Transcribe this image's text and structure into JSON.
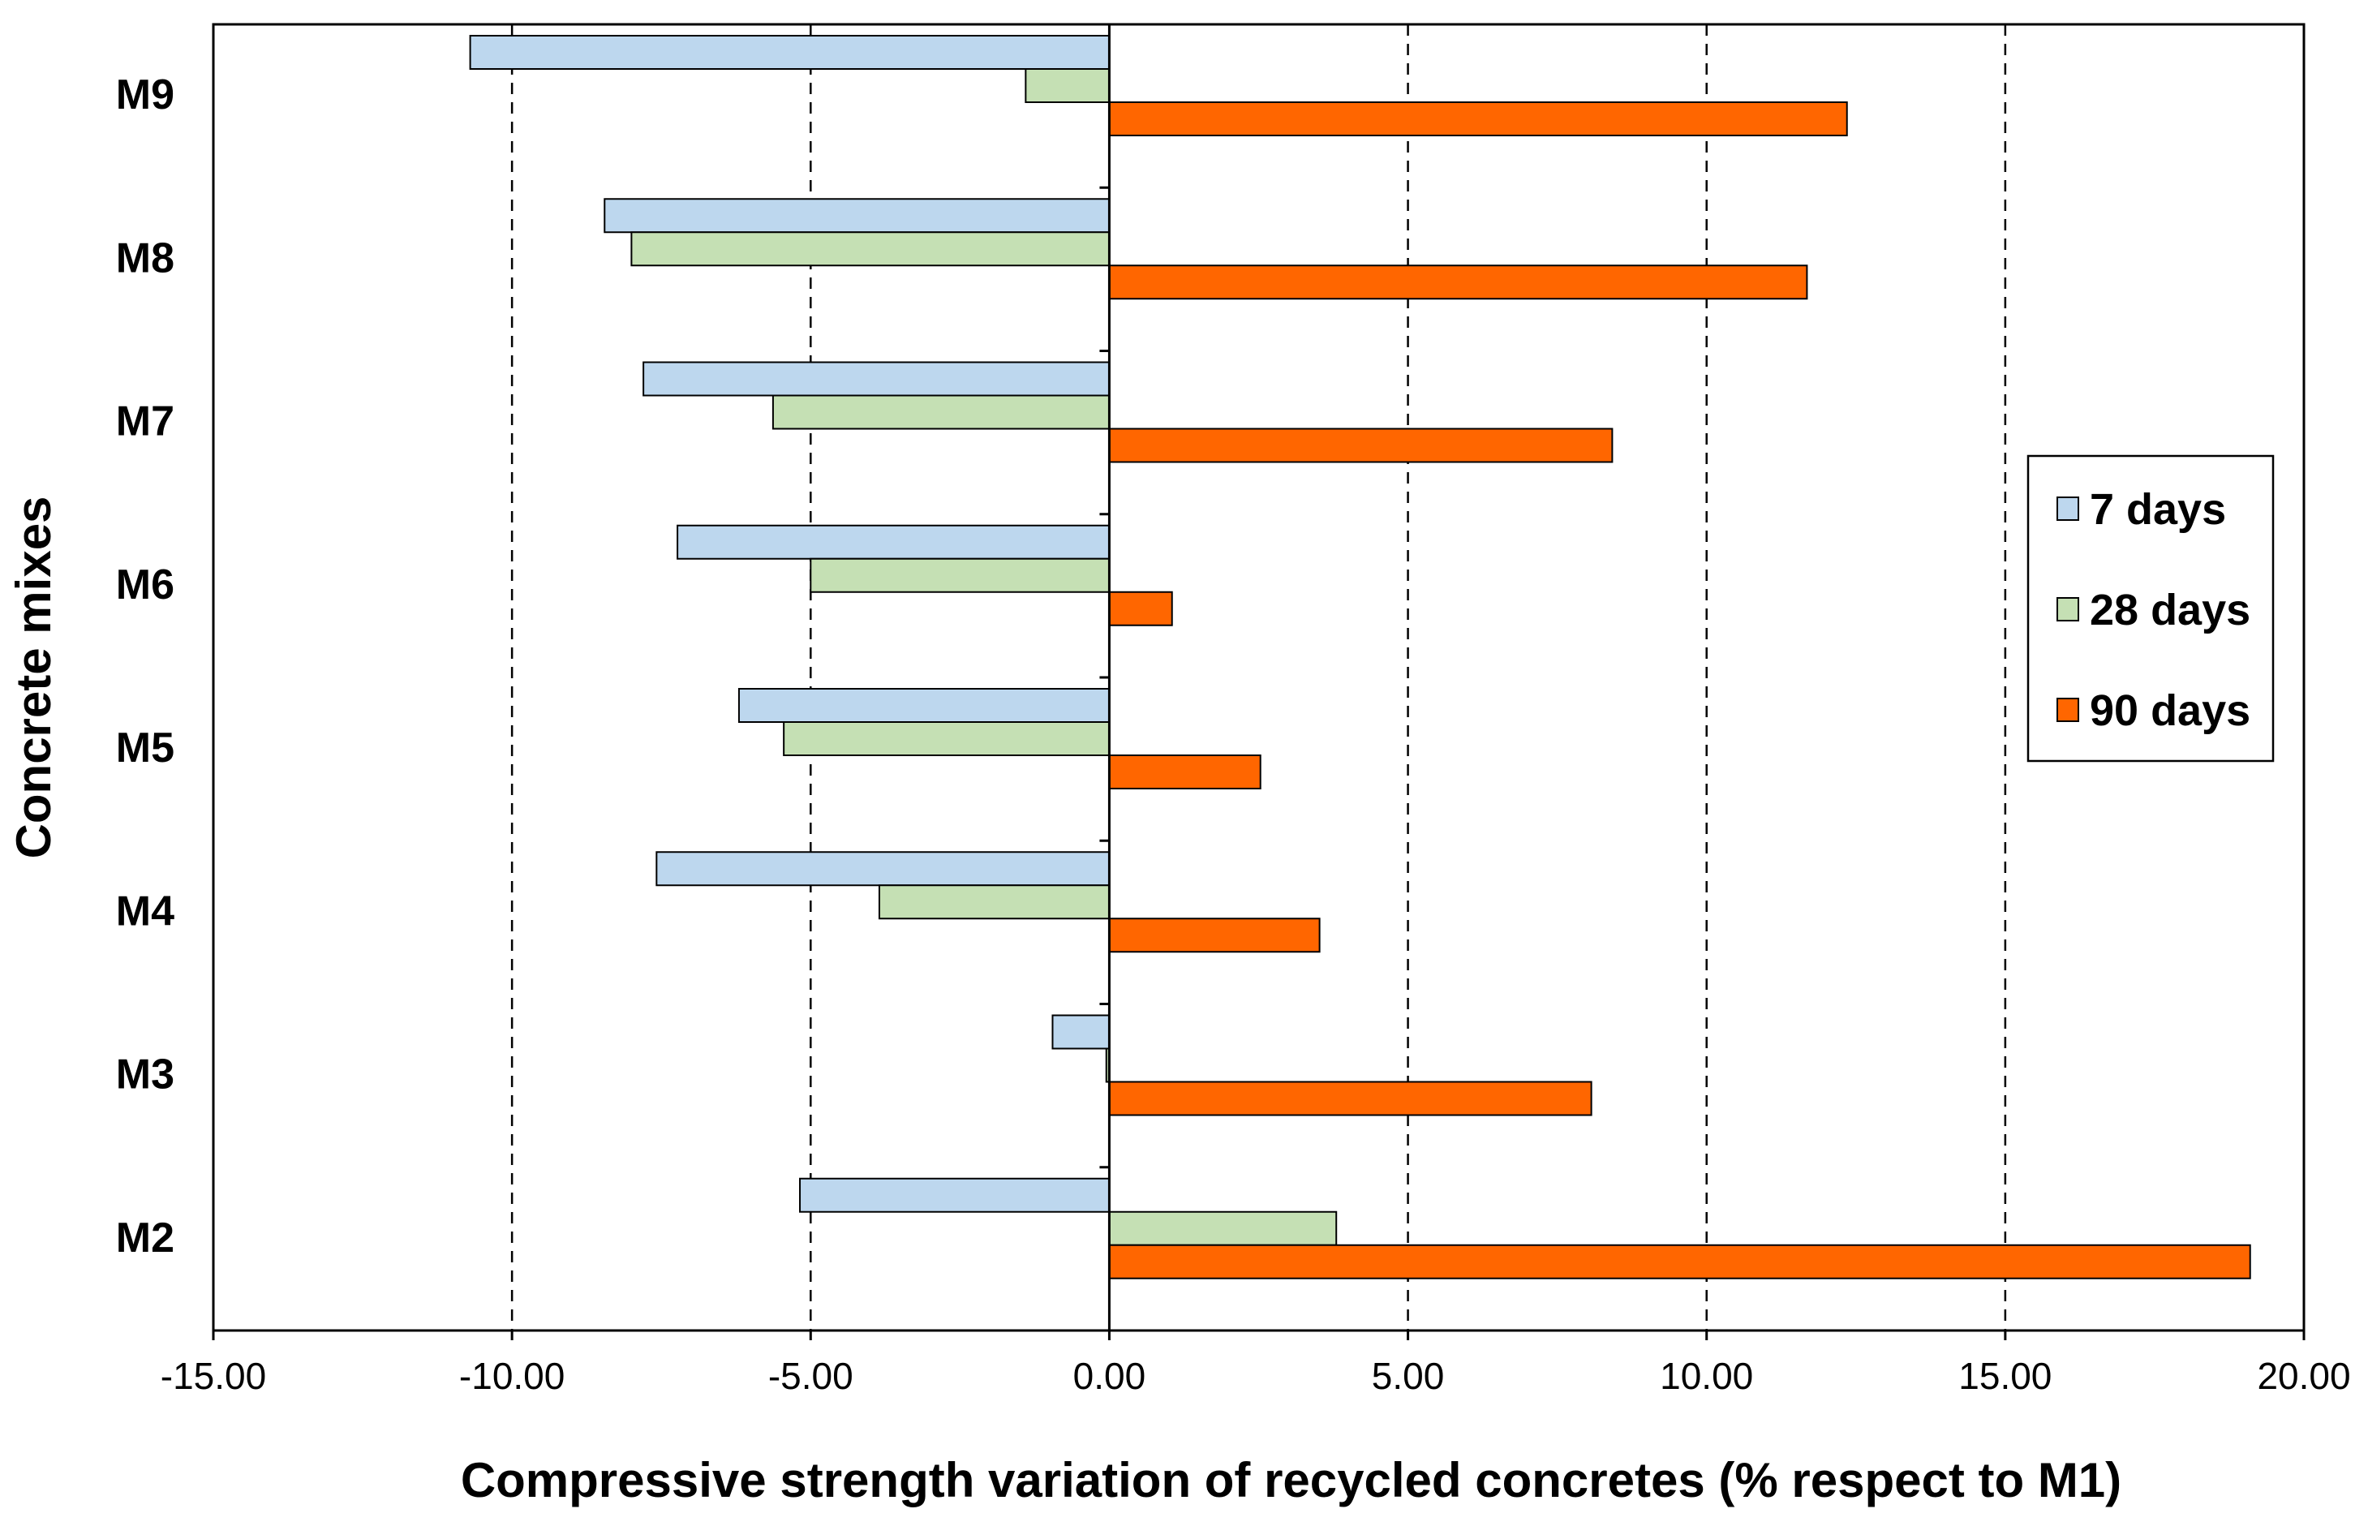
{
  "chart_data": {
    "type": "bar",
    "orientation": "horizontal",
    "title": "",
    "xlabel": "Compressive strength variation of recycled concretes (% respect to M1)",
    "ylabel": "Concrete mixes",
    "xlim": [
      -15,
      20
    ],
    "xticks": [
      "-15.00",
      "-10.00",
      "-5.00",
      "0.00",
      "5.00",
      "10.00",
      "15.00",
      "20.00"
    ],
    "grid": "vertical dashed",
    "legend_position": "right",
    "categories": [
      "M9",
      "M8",
      "M7",
      "M6",
      "M5",
      "M4",
      "M3",
      "M2"
    ],
    "series": [
      {
        "name": "7 days",
        "color": "#bdd7ee",
        "values": [
          -10.7,
          -8.45,
          -7.8,
          -7.23,
          -6.2,
          -7.58,
          -0.95,
          -5.18
        ]
      },
      {
        "name": "28 days",
        "color": "#c5e0b4",
        "values": [
          -1.4,
          -8.0,
          -5.63,
          -5.0,
          -5.45,
          -3.85,
          -0.05,
          3.8
        ]
      },
      {
        "name": "90 days",
        "color": "#ff6600",
        "values": [
          12.35,
          11.68,
          8.42,
          1.05,
          2.53,
          3.52,
          8.07,
          19.1
        ]
      }
    ]
  }
}
